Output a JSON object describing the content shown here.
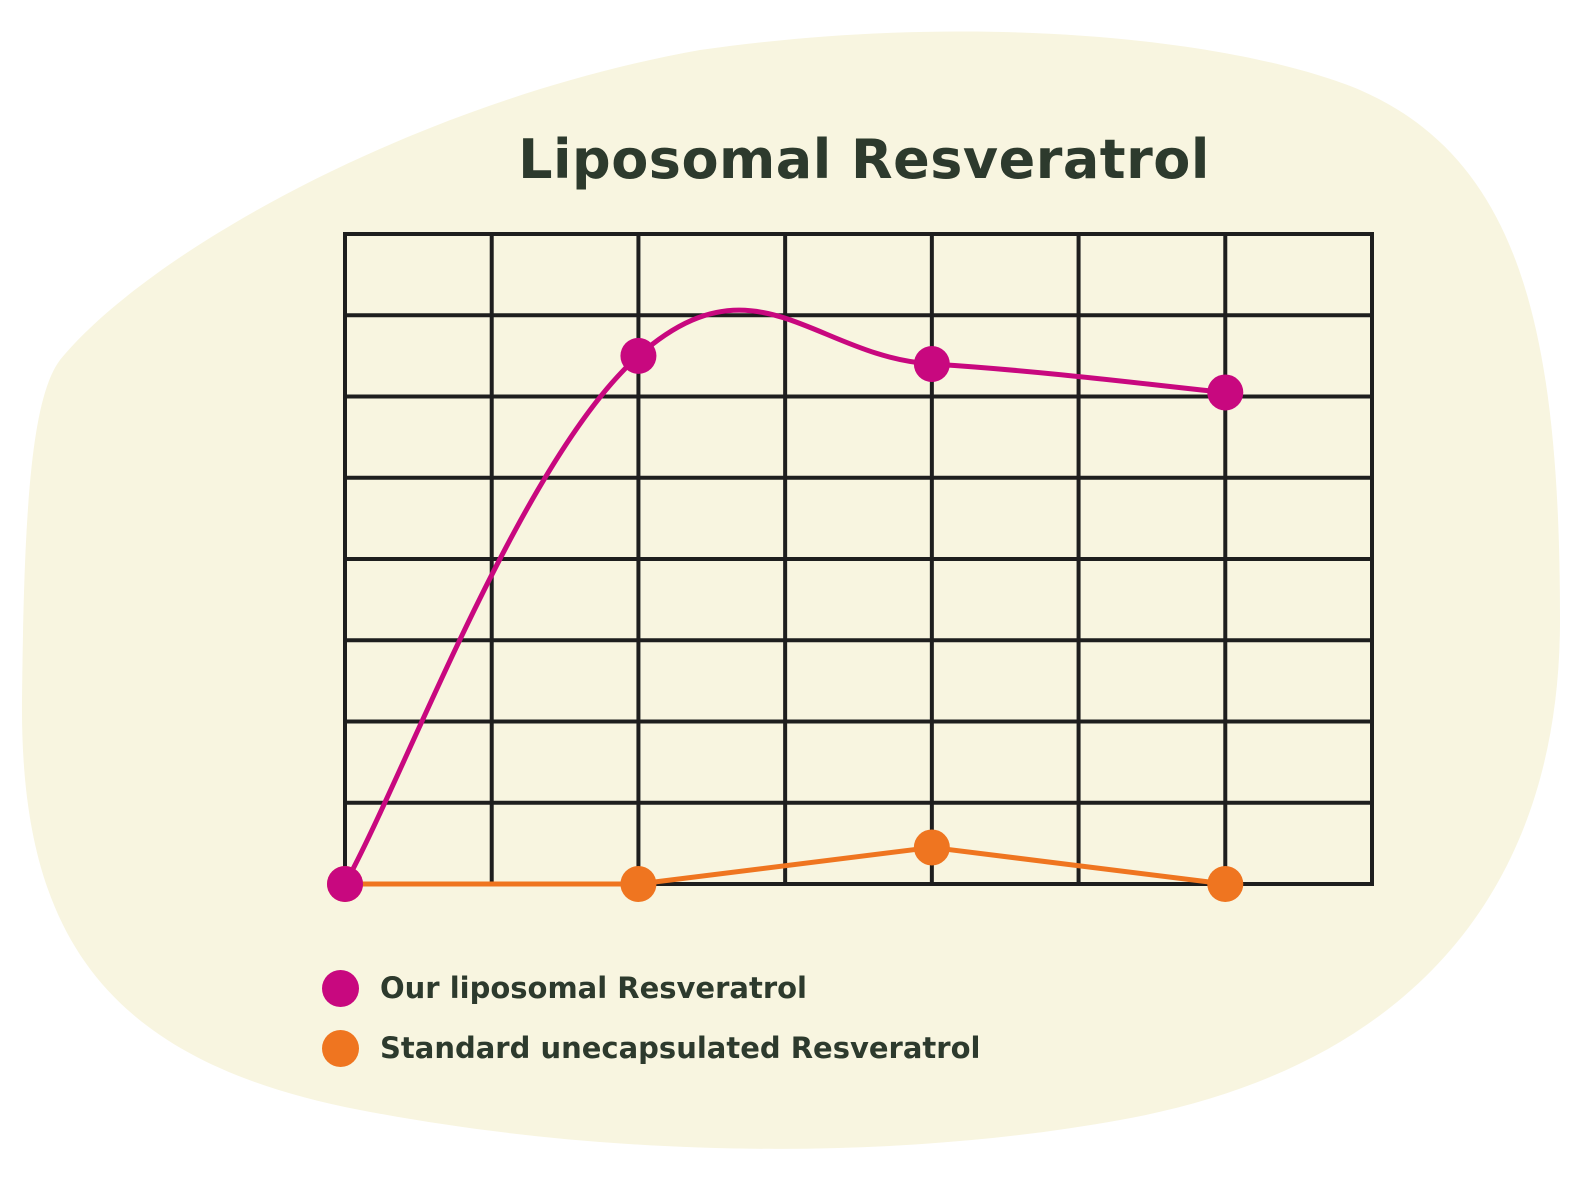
{
  "colors": {
    "background_blob": "#f8f5e0",
    "grid": "#1e1e1e",
    "text": "#2d3a2d",
    "liposomal": "#c8087f",
    "standard": "#ef7520"
  },
  "chart_data": {
    "type": "line",
    "title": "Liposomal Resveratrol",
    "xlabel": "",
    "ylabel": "",
    "x": [
      0,
      2,
      4,
      6
    ],
    "xlim": [
      0,
      7
    ],
    "ylim": [
      0,
      8
    ],
    "grid": true,
    "legend_position": "bottom-left",
    "series": [
      {
        "name": "Our liposomal Resveratrol",
        "color": "#c8087f",
        "smooth": true,
        "values": [
          0,
          6.5,
          6.4,
          6.05
        ]
      },
      {
        "name": "Standard unecapsulated Resveratrol",
        "color": "#ef7520",
        "smooth": false,
        "values": [
          0,
          0,
          0.45,
          0
        ]
      }
    ]
  }
}
